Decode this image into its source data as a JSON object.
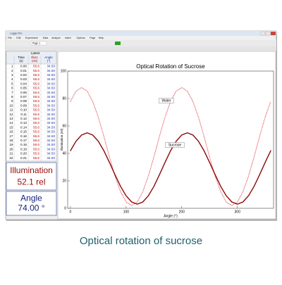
{
  "window": {
    "title": "Logger Pro",
    "menu": [
      "File",
      "Edit",
      "Experiment",
      "Data",
      "Analyze",
      "Insert",
      "Options",
      "Page",
      "Help"
    ],
    "page": "Page 1"
  },
  "table": {
    "title": "Latest",
    "columns": [
      {
        "name": "Time",
        "unit": "(s)"
      },
      {
        "name": "Illum",
        "unit": "(rel)"
      },
      {
        "name": "Angle",
        "unit": "(°)"
      }
    ],
    "rows": [
      [
        "1",
        "0.00",
        "55.6",
        "34.50"
      ],
      [
        "2",
        "0.01",
        "55.6",
        "34.50"
      ],
      [
        "3",
        "0.02",
        "55.6",
        "34.50"
      ],
      [
        "4",
        "0.03",
        "55.6",
        "34.50"
      ],
      [
        "5",
        "0.04",
        "55.6",
        "34.50"
      ],
      [
        "6",
        "0.05",
        "55.6",
        "34.50"
      ],
      [
        "7",
        "0.06",
        "55.6",
        "34.50"
      ],
      [
        "8",
        "0.07",
        "55.6",
        "34.50"
      ],
      [
        "9",
        "0.08",
        "55.6",
        "34.50"
      ],
      [
        "10",
        "0.09",
        "55.6",
        "34.50"
      ],
      [
        "11",
        "0.10",
        "55.6",
        "34.50"
      ],
      [
        "12",
        "0.11",
        "55.6",
        "34.50"
      ],
      [
        "13",
        "0.12",
        "55.6",
        "34.50"
      ],
      [
        "14",
        "0.13",
        "55.6",
        "34.50"
      ],
      [
        "15",
        "0.14",
        "55.6",
        "34.50"
      ],
      [
        "16",
        "0.15",
        "55.6",
        "34.50"
      ],
      [
        "17",
        "0.16",
        "55.6",
        "34.50"
      ],
      [
        "18",
        "0.17",
        "55.6",
        "34.50"
      ],
      [
        "19",
        "0.18",
        "55.6",
        "34.50"
      ],
      [
        "20",
        "0.19",
        "55.6",
        "34.50"
      ],
      [
        "21",
        "0.20",
        "55.6",
        "34.50"
      ],
      [
        "22",
        "0.21",
        "55.6",
        "34.50"
      ]
    ]
  },
  "meters": [
    {
      "label": "Illumination",
      "value": "52.1 rel",
      "color": "#9b0a0a"
    },
    {
      "label": "Angle",
      "value": "74.00 °",
      "color": "#14237a"
    }
  ],
  "chart_data": {
    "type": "line",
    "title": "Optical Rotation of Sucrose",
    "x_label": "Angle (°)",
    "y_label": "Illumination (rel)",
    "x": [
      0,
      10,
      20,
      30,
      40,
      50,
      60,
      70,
      80,
      90,
      100,
      110,
      120,
      130,
      140,
      150,
      160,
      170,
      180,
      190,
      200,
      210,
      220,
      230,
      240,
      250,
      260,
      270,
      280,
      290,
      300,
      310,
      320,
      330,
      340,
      350,
      360
    ],
    "series": [
      {
        "name": "Water",
        "color": "#e0303a",
        "style": "dotted",
        "values": [
          77.9,
          85.4,
          88,
          85.4,
          77.9,
          66.5,
          52.5,
          37.5,
          23.5,
          12.1,
          4.6,
          2,
          4.6,
          12.1,
          23.5,
          37.5,
          52.5,
          66.5,
          77.9,
          85.4,
          88,
          85.4,
          77.9,
          66.5,
          52.5,
          37.5,
          23.5,
          12.1,
          4.6,
          2,
          4.6,
          12.1,
          23.5,
          37.5,
          52.5,
          66.5,
          77.9
        ]
      },
      {
        "name": "Sucrose",
        "color": "#8b0a0a",
        "style": "solid",
        "values": [
          42,
          48.9,
          53.4,
          55,
          53.4,
          48.9,
          42,
          33.5,
          24.5,
          16,
          9.1,
          4.6,
          3,
          4.6,
          9.1,
          16,
          24.5,
          33.5,
          42,
          48.9,
          53.4,
          55,
          53.4,
          48.9,
          42,
          33.5,
          24.5,
          16,
          9.1,
          4.6,
          3,
          4.6,
          9.1,
          16,
          24.5,
          33.5,
          42
        ]
      }
    ],
    "xlim": [
      -5,
      365
    ],
    "xticks": [
      0,
      100,
      200,
      300
    ],
    "ylim": [
      0,
      100
    ],
    "yticks": [
      0,
      20,
      40,
      60,
      80,
      100
    ]
  },
  "caption": "Optical rotation of sucrose"
}
